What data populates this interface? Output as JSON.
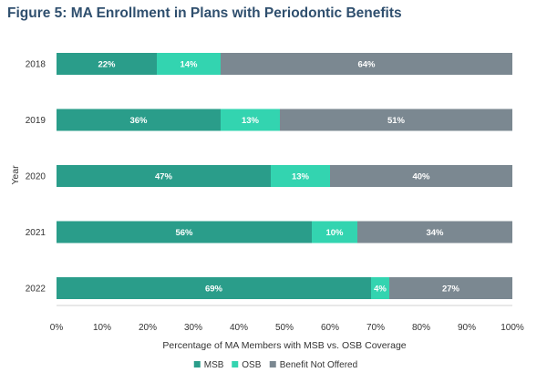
{
  "chart_data": {
    "type": "bar",
    "orientation": "horizontal",
    "stacked": true,
    "title": "Figure 5: MA Enrollment in Plans with Periodontic Benefits",
    "xlabel": "Percentage of MA Members with MSB vs. OSB Coverage",
    "ylabel": "Year",
    "categories": [
      "2018",
      "2019",
      "2020",
      "2021",
      "2022"
    ],
    "series": [
      {
        "name": "MSB",
        "color": "#2a9d8a",
        "values": [
          22,
          36,
          47,
          56,
          69
        ]
      },
      {
        "name": "OSB",
        "color": "#33d4b0",
        "values": [
          14,
          13,
          13,
          10,
          4
        ]
      },
      {
        "name": "Benefit Not Offered",
        "color": "#7b8891",
        "values": [
          64,
          51,
          40,
          34,
          27
        ]
      }
    ],
    "xlim": [
      0,
      100
    ],
    "xticks": [
      "0%",
      "10%",
      "20%",
      "30%",
      "40%",
      "50%",
      "60%",
      "70%",
      "80%",
      "90%",
      "100%"
    ],
    "value_suffix": "%",
    "legend_position": "bottom",
    "grid": false
  }
}
